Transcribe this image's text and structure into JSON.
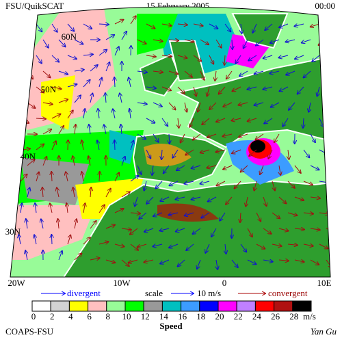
{
  "header": {
    "title": "FSU/QuikSCAT",
    "date": "15 February 2005",
    "time": "00:00"
  },
  "lat_labels": [
    "60N",
    "50N",
    "40N",
    "30N"
  ],
  "lon_labels": [
    "20W",
    "10W",
    "0",
    "10E"
  ],
  "legend": {
    "divergent": "divergent",
    "scale": "scale",
    "scale_value": "10 m/s",
    "convergent": "convergent"
  },
  "colorbar": {
    "labels": [
      0,
      2,
      4,
      6,
      8,
      10,
      12,
      14,
      16,
      18,
      20,
      22,
      24,
      26,
      28
    ],
    "colors": [
      "#ffffff",
      "#d3d3d3",
      "#ffff00",
      "#ffc0c0",
      "#98fb98",
      "#00ff00",
      "#999999",
      "#00c0c0",
      "#3c9cff",
      "#0000ff",
      "#ff00ff",
      "#c080ff",
      "#ff0000",
      "#b01010",
      "#000000"
    ],
    "unit": "m/s",
    "title": "Speed"
  },
  "footer": {
    "left": "COAPS-FSU",
    "right": "Yan Gu"
  }
}
